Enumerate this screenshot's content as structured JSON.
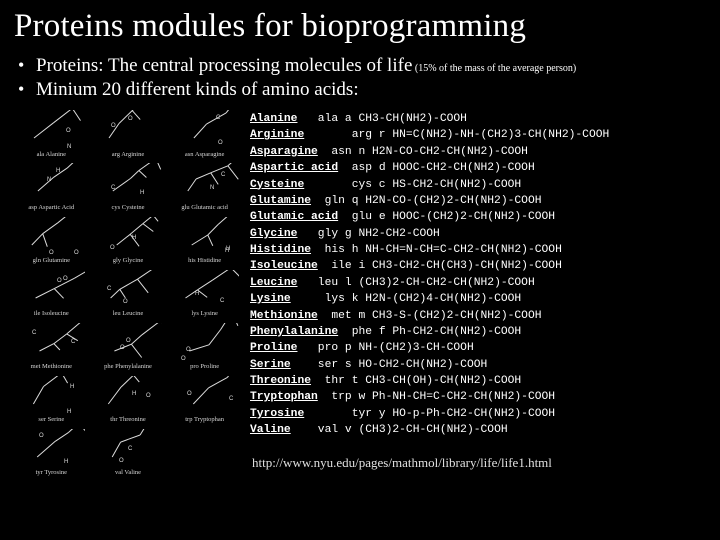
{
  "title": "Proteins modules for bioprogramming",
  "bullet1_main": "Proteins: The central processing molecules of life",
  "bullet1_tail": " (15% of the mass of the average person)",
  "bullet2": "Minium 20 different kinds of amino acids:",
  "structure_labels": [
    "ala Alanine",
    "arg Arginine",
    "asn Asparagine",
    "asp Aspartic Acid",
    "cys Cysteine",
    "glu Glutamic acid",
    "gln Glutamine",
    "gly Glycine",
    "his Histidine",
    "ile Isoleucine",
    "leu Leucine",
    "lys Lysine",
    "met Methionine",
    "phe Phenylalanine",
    "pro Proline",
    "ser Serine",
    "thr Threonine",
    "trp Tryptophan",
    "tyr Tyrosine",
    "val Valine",
    ""
  ],
  "amino_acids": [
    {
      "name": "Alanine",
      "pad": "  ",
      "code": "ala a",
      "formula": "CH3-CH(NH2)-COOH"
    },
    {
      "name": "Arginine",
      "pad": "      ",
      "code": "arg r",
      "formula": "HN=C(NH2)-NH-(CH2)3-CH(NH2)-COOH"
    },
    {
      "name": "Asparagine",
      "pad": "",
      "code": "asn n",
      "formula": "H2N-CO-CH2-CH(NH2)-COOH"
    },
    {
      "name": "Aspartic acid",
      "pad": "",
      "code": "asp d",
      "formula": "HOOC-CH2-CH(NH2)-COOH"
    },
    {
      "name": "Cysteine",
      "pad": "      ",
      "code": "cys c",
      "formula": "HS-CH2-CH(NH2)-COOH"
    },
    {
      "name": "Glutamine",
      "pad": "",
      "code": "gln q",
      "formula": "H2N-CO-(CH2)2-CH(NH2)-COOH"
    },
    {
      "name": "Glutamic acid",
      "pad": "",
      "code": "glu e",
      "formula": "HOOC-(CH2)2-CH(NH2)-COOH"
    },
    {
      "name": "Glycine",
      "pad": "  ",
      "code": "gly g",
      "formula": "NH2-CH2-COOH"
    },
    {
      "name": "Histidine",
      "pad": "",
      "code": "his h",
      "formula": "NH-CH=N-CH=C-CH2-CH(NH2)-COOH"
    },
    {
      "name": "Isoleucine",
      "pad": "",
      "code": "ile i",
      "formula": "CH3-CH2-CH(CH3)-CH(NH2)-COOH"
    },
    {
      "name": "Leucine",
      "pad": "  ",
      "code": "leu l",
      "formula": "(CH3)2-CH-CH2-CH(NH2)-COOH"
    },
    {
      "name": "Lysine",
      "pad": "    ",
      "code": "lys k",
      "formula": "H2N-(CH2)4-CH(NH2)-COOH"
    },
    {
      "name": "Methionine",
      "pad": "",
      "code": "met m",
      "formula": "CH3-S-(CH2)2-CH(NH2)-COOH"
    },
    {
      "name": "Phenylalanine",
      "pad": "",
      "code": "phe f",
      "formula": "Ph-CH2-CH(NH2)-COOH"
    },
    {
      "name": "Proline",
      "pad": "  ",
      "code": "pro p",
      "formula": "NH-(CH2)3-CH-COOH"
    },
    {
      "name": "Serine",
      "pad": "   ",
      "code": "ser s",
      "formula": "HO-CH2-CH(NH2)-COOH"
    },
    {
      "name": "Threonine",
      "pad": "",
      "code": "thr t",
      "formula": "CH3-CH(OH)-CH(NH2)-COOH"
    },
    {
      "name": "Tryptophan",
      "pad": "",
      "code": "trp w",
      "formula": "Ph-NH-CH=C-CH2-CH(NH2)-COOH"
    },
    {
      "name": "Tyrosine",
      "pad": "      ",
      "code": "tyr y",
      "formula": "HO-p-Ph-CH2-CH(NH2)-COOH"
    },
    {
      "name": "Valine",
      "pad": "   ",
      "code": "val v",
      "formula": "(CH3)2-CH-CH(NH2)-COOH"
    }
  ],
  "url": "http://www.nyu.edu/pages/mathmol/library/life/life1.html",
  "colors": {
    "background": "#000000",
    "text": "#ffffff",
    "dim_text": "#d6d6d6",
    "bond": "#dcdcdc"
  }
}
